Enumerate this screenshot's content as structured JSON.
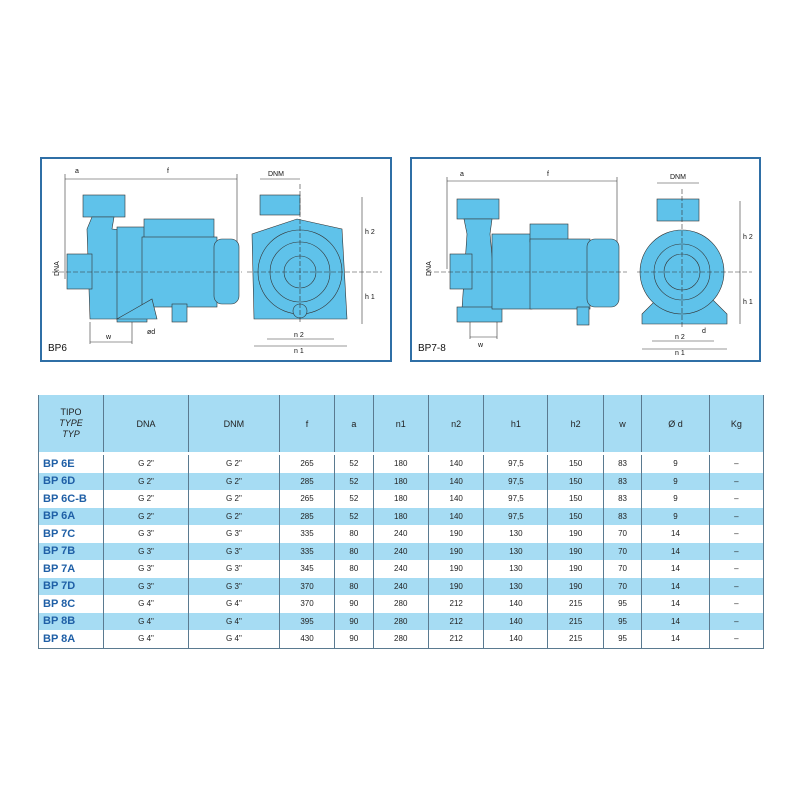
{
  "diagrams": [
    {
      "label": "BP6",
      "dims": {
        "a": "a",
        "f": "f",
        "dna": "DNA",
        "dnm": "DNM",
        "w": "w",
        "d": "ød",
        "h1": "h 1",
        "h2": "h 2",
        "n1": "n 1",
        "n2": "n 2"
      }
    },
    {
      "label": "BP7-8",
      "dims": {
        "a": "a",
        "f": "f",
        "dna": "DNA",
        "dnm": "DNM",
        "w": "w",
        "d": "d",
        "h1": "h 1",
        "h2": "h 2",
        "n1": "n 1",
        "n2": "n 2"
      }
    }
  ],
  "colors": {
    "pump": "#5fc2ea",
    "border": "#2f6fa6",
    "row_alt": "#a6dcf3",
    "type_text": "#1f5fa6"
  },
  "table": {
    "header": {
      "tipo": [
        "TIPO",
        "TYPE",
        "TYP"
      ],
      "cols": [
        "DNA",
        "DNM",
        "f",
        "a",
        "n1",
        "n2",
        "h1",
        "h2",
        "w",
        "Ø d",
        "Kg"
      ]
    },
    "rows": [
      [
        "BP 6E",
        "G 2\"",
        "G 2\"",
        "265",
        "52",
        "180",
        "140",
        "97,5",
        "150",
        "83",
        "9",
        "–"
      ],
      [
        "BP 6D",
        "G 2\"",
        "G 2\"",
        "285",
        "52",
        "180",
        "140",
        "97,5",
        "150",
        "83",
        "9",
        "–"
      ],
      [
        "BP 6C-B",
        "G 2\"",
        "G 2\"",
        "265",
        "52",
        "180",
        "140",
        "97,5",
        "150",
        "83",
        "9",
        "–"
      ],
      [
        "BP 6A",
        "G 2\"",
        "G 2\"",
        "285",
        "52",
        "180",
        "140",
        "97,5",
        "150",
        "83",
        "9",
        "–"
      ],
      [
        "BP 7C",
        "G 3\"",
        "G 3\"",
        "335",
        "80",
        "240",
        "190",
        "130",
        "190",
        "70",
        "14",
        "–"
      ],
      [
        "BP 7B",
        "G 3\"",
        "G 3\"",
        "335",
        "80",
        "240",
        "190",
        "130",
        "190",
        "70",
        "14",
        "–"
      ],
      [
        "BP 7A",
        "G 3\"",
        "G 3\"",
        "345",
        "80",
        "240",
        "190",
        "130",
        "190",
        "70",
        "14",
        "–"
      ],
      [
        "BP 7D",
        "G 3\"",
        "G 3\"",
        "370",
        "80",
        "240",
        "190",
        "130",
        "190",
        "70",
        "14",
        "–"
      ],
      [
        "BP 8C",
        "G 4\"",
        "G 4\"",
        "370",
        "90",
        "280",
        "212",
        "140",
        "215",
        "95",
        "14",
        "–"
      ],
      [
        "BP 8B",
        "G 4\"",
        "G 4\"",
        "395",
        "90",
        "280",
        "212",
        "140",
        "215",
        "95",
        "14",
        "–"
      ],
      [
        "BP 8A",
        "G 4\"",
        "G 4\"",
        "430",
        "90",
        "280",
        "212",
        "140",
        "215",
        "95",
        "14",
        "–"
      ]
    ]
  }
}
